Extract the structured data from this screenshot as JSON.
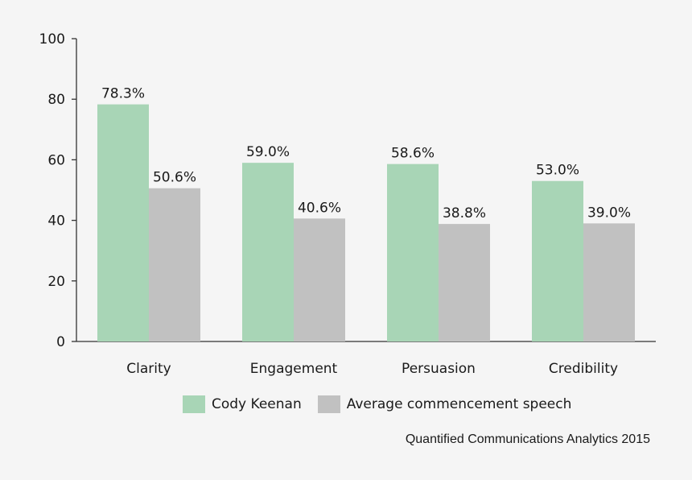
{
  "chart_data": {
    "type": "bar",
    "categories": [
      "Clarity",
      "Engagement",
      "Persuasion",
      "Credibility"
    ],
    "series": [
      {
        "name": "Cody Keenan",
        "color": "#a8d5b6",
        "values": [
          78.3,
          59.0,
          58.6,
          53.0
        ],
        "labels": [
          "78.3%",
          "59.0%",
          "58.6%",
          "53.0%"
        ]
      },
      {
        "name": "Average commencement speech",
        "color": "#c1c1c1",
        "values": [
          50.6,
          40.6,
          38.8,
          39.0
        ],
        "labels": [
          "50.6%",
          "40.6%",
          "38.8%",
          "39.0%"
        ]
      }
    ],
    "yticks": [
      "0",
      "20",
      "40",
      "60",
      "80",
      "100"
    ],
    "ylim": [
      0,
      100
    ],
    "title": "",
    "xlabel": "",
    "ylabel": "",
    "legend_position": "bottom"
  },
  "source_note": "Quantified Communications Analytics 2015"
}
